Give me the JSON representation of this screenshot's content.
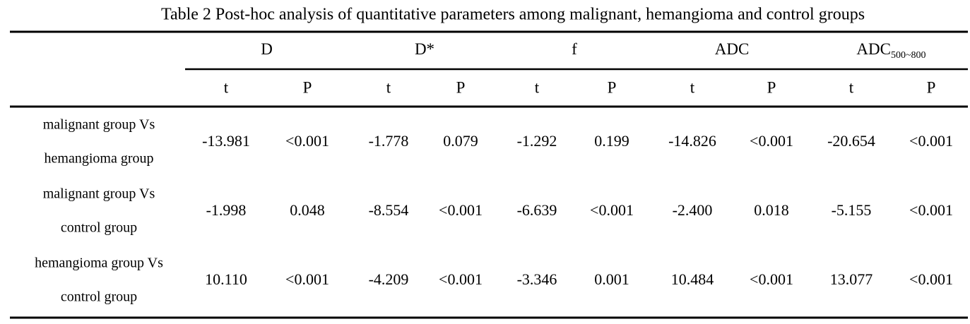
{
  "title": "Table 2 Post-hoc analysis of quantitative parameters among malignant, hemangioma and control groups",
  "table": {
    "groups": [
      {
        "label": "D"
      },
      {
        "label": "D*"
      },
      {
        "label": "f"
      },
      {
        "label": "ADC"
      },
      {
        "label": "ADC",
        "subscript": "500~800"
      }
    ],
    "subheaders": [
      "t",
      "P",
      "t",
      "P",
      "t",
      "P",
      "t",
      "P",
      "t",
      "P"
    ],
    "rows": [
      {
        "label": [
          "malignant group    Vs",
          "hemangioma group"
        ],
        "cells": [
          "-13.981",
          "<0.001",
          "-1.778",
          "0.079",
          "-1.292",
          "0.199",
          "-14.826",
          "<0.001",
          "-20.654",
          "<0.001"
        ]
      },
      {
        "label": [
          "malignant group Vs",
          "control group"
        ],
        "cells": [
          "-1.998",
          "0.048",
          "-8.554",
          "<0.001",
          "-6.639",
          "<0.001",
          "-2.400",
          "0.018",
          "-5.155",
          "<0.001"
        ]
      },
      {
        "label": [
          "hemangioma group Vs",
          "control group"
        ],
        "cells": [
          "10.110",
          "<0.001",
          "-4.209",
          "<0.001",
          "-3.346",
          "0.001",
          "10.484",
          "<0.001",
          "13.077",
          "<0.001"
        ]
      }
    ]
  }
}
